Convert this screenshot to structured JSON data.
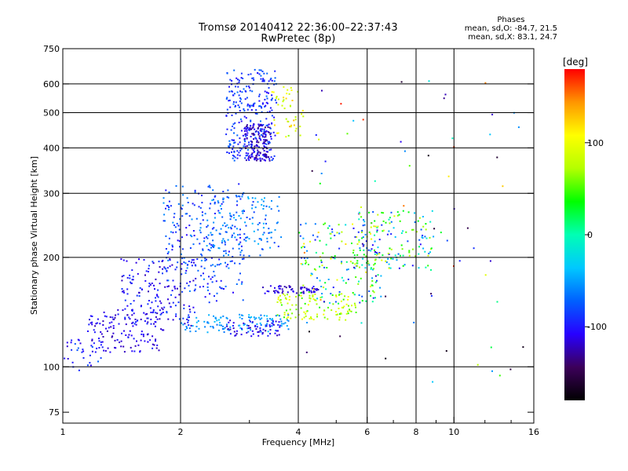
{
  "header": {
    "title_line1": "Tromsø 20140412 22:36:00–22:37:43",
    "title_line2": "RwPretec (8p)"
  },
  "phase_info": {
    "title": "Phases",
    "line_o": "mean, sd,O: -84.7, 21.5",
    "line_x": "mean, sd,X: 83.1, 24.7"
  },
  "colorbar": {
    "label": "[deg]",
    "min": -180,
    "max": 180,
    "ticks": [
      {
        "value": 100,
        "label": "100"
      },
      {
        "value": 0,
        "label": "0"
      },
      {
        "value": -100,
        "label": "-100"
      }
    ],
    "colors": [
      "#000000",
      "#3c005a",
      "#2800ff",
      "#0060ff",
      "#00c8ff",
      "#00ffb4",
      "#00ff00",
      "#b4ff00",
      "#ffff00",
      "#ff9600",
      "#ff0000"
    ]
  },
  "chart_data": {
    "type": "scatter",
    "xlabel": "Frequency [MHz]",
    "ylabel": "Stationary phase Virtual Height [km]",
    "xscale": "log",
    "yscale": "log",
    "xlim": [
      1,
      16
    ],
    "ylim": [
      70,
      750
    ],
    "grid": true,
    "x_ticks": [
      {
        "value": 1,
        "label": "1"
      },
      {
        "value": 2,
        "label": "2"
      },
      {
        "value": 4,
        "label": "4"
      },
      {
        "value": 6,
        "label": "6"
      },
      {
        "value": 8,
        "label": "8"
      },
      {
        "value": 10,
        "label": "10"
      },
      {
        "value": 16,
        "label": "16"
      }
    ],
    "x_grid": [
      2,
      4,
      6,
      8,
      10
    ],
    "y_ticks": [
      {
        "value": 75,
        "label": "75"
      },
      {
        "value": 100,
        "label": "100"
      },
      {
        "value": 200,
        "label": "200"
      },
      {
        "value": 300,
        "label": "300"
      },
      {
        "value": 400,
        "label": "400"
      },
      {
        "value": 500,
        "label": "500"
      },
      {
        "value": 600,
        "label": "600"
      },
      {
        "value": 750,
        "label": "750"
      }
    ],
    "y_grid": [
      100,
      200,
      300,
      400,
      500,
      600
    ],
    "clusters": [
      {
        "name": "low-trace",
        "f": [
          1.0,
          1.25
        ],
        "h": [
          98,
          120
        ],
        "phase": [
          -120,
          -70
        ],
        "n": 30
      },
      {
        "name": "lower-ramp",
        "f": [
          1.15,
          1.8
        ],
        "h": [
          110,
          145
        ],
        "phase": [
          -125,
          -95
        ],
        "n": 140
      },
      {
        "name": "lower-mid",
        "f": [
          1.4,
          2.2
        ],
        "h": [
          130,
          200
        ],
        "phase": [
          -125,
          -80
        ],
        "n": 170
      },
      {
        "name": "mid-band",
        "f": [
          1.8,
          2.9
        ],
        "h": [
          150,
          320
        ],
        "phase": [
          -110,
          -55
        ],
        "n": 240
      },
      {
        "name": "mid-upper",
        "f": [
          2.2,
          3.6
        ],
        "h": [
          200,
          300
        ],
        "phase": [
          -90,
          -40
        ],
        "n": 130
      },
      {
        "name": "tower",
        "f": [
          2.6,
          3.5
        ],
        "h": [
          370,
          660
        ],
        "phase": [
          -110,
          -65
        ],
        "n": 280
      },
      {
        "name": "tower-core",
        "f": [
          2.9,
          3.4
        ],
        "h": [
          370,
          470
        ],
        "phase": [
          -140,
          -100
        ],
        "n": 140
      },
      {
        "name": "upper-flank",
        "f": [
          3.4,
          4.1
        ],
        "h": [
          420,
          600
        ],
        "phase": [
          60,
          140
        ],
        "n": 45
      },
      {
        "name": "diag-cyan",
        "f": [
          2.0,
          3.8
        ],
        "h": [
          125,
          140
        ],
        "phase": [
          -70,
          -35
        ],
        "n": 110
      },
      {
        "name": "base-dark",
        "f": [
          2.6,
          3.6
        ],
        "h": [
          122,
          135
        ],
        "phase": [
          -125,
          -95
        ],
        "n": 60
      },
      {
        "name": "yellow-hook",
        "f": [
          3.5,
          5.6
        ],
        "h": [
          135,
          160
        ],
        "phase": [
          40,
          110
        ],
        "n": 110
      },
      {
        "name": "dark-shelf",
        "f": [
          3.2,
          4.5
        ],
        "h": [
          160,
          168
        ],
        "phase": [
          -130,
          -100
        ],
        "n": 60
      },
      {
        "name": "mixed-band",
        "f": [
          4.0,
          6.5
        ],
        "h": [
          150,
          250
        ],
        "phase": [
          -120,
          120
        ],
        "n": 170
      },
      {
        "name": "right-cloud",
        "f": [
          5.5,
          9.0
        ],
        "h": [
          185,
          270
        ],
        "phase": [
          -110,
          100
        ],
        "n": 150
      },
      {
        "name": "sparse",
        "f": [
          4.0,
          15.0
        ],
        "h": [
          90,
          620
        ],
        "phase": [
          -180,
          180
        ],
        "n": 70
      }
    ]
  }
}
